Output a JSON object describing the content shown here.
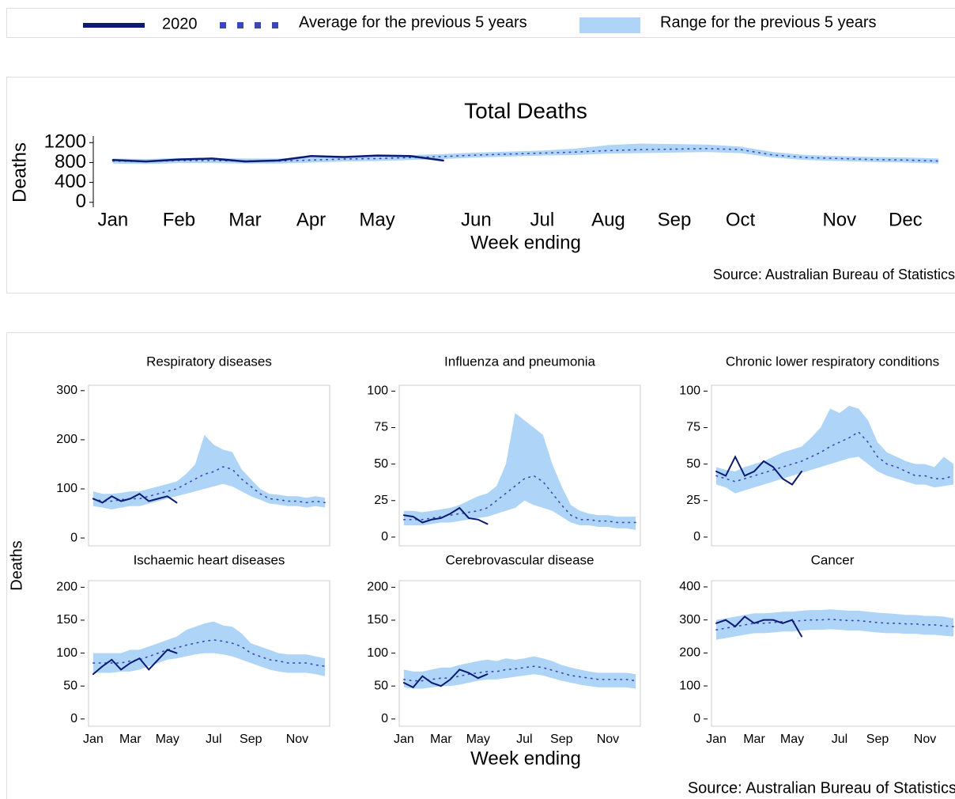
{
  "chart_data": [
    {
      "type": "line",
      "title": "Total Deaths",
      "ylabel": "Deaths",
      "xlabel": "Week ending",
      "source": "Source: Australian Bureau of Statistics",
      "categories": [
        "Jan",
        null,
        "Feb",
        null,
        "Mar",
        null,
        "Apr",
        null,
        "May",
        null,
        null,
        "Jun",
        null,
        "Jul",
        null,
        "Aug",
        null,
        "Sep",
        null,
        "Oct",
        null,
        null,
        "Nov",
        null,
        "Dec",
        null
      ],
      "ylim": [
        -20,
        1300
      ],
      "yticks": [
        0,
        400,
        800,
        1200
      ],
      "series": [
        {
          "name": "Range for the previous 5 years",
          "color": "#aed4f8",
          "low": [
            780,
            770,
            790,
            790,
            780,
            780,
            800,
            820,
            830,
            850,
            870,
            900,
            920,
            940,
            950,
            980,
            990,
            1000,
            1010,
            990,
            900,
            850,
            830,
            810,
            800,
            780
          ],
          "high": [
            880,
            870,
            890,
            890,
            880,
            880,
            900,
            920,
            930,
            950,
            970,
            1000,
            1020,
            1040,
            1080,
            1150,
            1180,
            1170,
            1160,
            1120,
            1010,
            950,
            930,
            910,
            900,
            880
          ]
        },
        {
          "name": "Average for the previous 5 years",
          "color": "#3b46b8",
          "line_style": "dotted",
          "values": [
            830,
            820,
            840,
            840,
            830,
            830,
            850,
            870,
            880,
            900,
            920,
            950,
            970,
            990,
            1010,
            1040,
            1060,
            1070,
            1080,
            1060,
            950,
            900,
            880,
            860,
            850,
            830
          ]
        },
        {
          "name": "2020",
          "color": "#0b1a73",
          "values": [
            850,
            820,
            860,
            880,
            820,
            840,
            930,
            910,
            940,
            930,
            840,
            null,
            null,
            null,
            null,
            null,
            null,
            null,
            null,
            null,
            null,
            null,
            null,
            null,
            null,
            null
          ]
        }
      ]
    },
    {
      "type": "line",
      "title": "Respiratory diseases",
      "categories": [
        "Jan",
        null,
        null,
        null,
        "Mar",
        null,
        null,
        null,
        "May",
        null,
        null,
        null,
        null,
        "Jul",
        null,
        null,
        null,
        "Sep",
        null,
        null,
        null,
        null,
        "Nov",
        null,
        null,
        null
      ],
      "ylim": [
        -16,
        311
      ],
      "yticks": [
        0,
        100,
        200,
        300
      ],
      "series": [
        {
          "color": "#aed4f8",
          "low": [
            65,
            62,
            58,
            62,
            65,
            65,
            70,
            75,
            80,
            85,
            90,
            95,
            100,
            105,
            110,
            105,
            95,
            85,
            78,
            70,
            68,
            65,
            65,
            62,
            65,
            62
          ],
          "high": [
            95,
            90,
            90,
            92,
            95,
            95,
            100,
            105,
            110,
            115,
            130,
            150,
            210,
            190,
            180,
            175,
            140,
            120,
            100,
            90,
            88,
            85,
            85,
            82,
            85,
            82
          ]
        },
        {
          "color": "#3b46b8",
          "line_style": "dotted",
          "values": [
            80,
            75,
            75,
            78,
            80,
            80,
            85,
            90,
            95,
            100,
            110,
            120,
            130,
            135,
            145,
            140,
            120,
            105,
            90,
            80,
            78,
            75,
            75,
            72,
            75,
            72
          ]
        },
        {
          "color": "#0b1a73",
          "values": [
            80,
            72,
            85,
            75,
            80,
            90,
            75,
            80,
            85,
            72,
            null,
            null,
            null,
            null,
            null,
            null,
            null,
            null,
            null,
            null,
            null,
            null,
            null,
            null,
            null,
            null
          ]
        }
      ]
    },
    {
      "type": "line",
      "title": "Influenza and pneumonia",
      "categories": [
        "Jan",
        null,
        null,
        null,
        "Mar",
        null,
        null,
        null,
        "May",
        null,
        null,
        null,
        null,
        "Jul",
        null,
        null,
        null,
        "Sep",
        null,
        null,
        null,
        null,
        "Nov",
        null,
        null,
        null
      ],
      "ylim": [
        -6,
        104
      ],
      "yticks": [
        0,
        25,
        50,
        75,
        100
      ],
      "series": [
        {
          "color": "#aed4f8",
          "low": [
            8,
            8,
            8,
            9,
            10,
            10,
            11,
            12,
            13,
            14,
            16,
            18,
            20,
            25,
            22,
            20,
            18,
            14,
            10,
            8,
            8,
            7,
            7,
            6,
            6,
            5
          ],
          "high": [
            18,
            18,
            17,
            18,
            19,
            20,
            22,
            25,
            28,
            30,
            35,
            50,
            85,
            80,
            75,
            70,
            50,
            35,
            22,
            18,
            16,
            15,
            15,
            14,
            14,
            14
          ]
        },
        {
          "color": "#3b46b8",
          "line_style": "dotted",
          "values": [
            12,
            12,
            12,
            13,
            14,
            15,
            16,
            17,
            18,
            20,
            25,
            30,
            35,
            40,
            42,
            38,
            30,
            22,
            15,
            12,
            12,
            11,
            11,
            10,
            10,
            10
          ]
        },
        {
          "color": "#0b1a73",
          "values": [
            15,
            14,
            10,
            12,
            13,
            16,
            20,
            13,
            12,
            9,
            null,
            null,
            null,
            null,
            null,
            null,
            null,
            null,
            null,
            null,
            null,
            null,
            null,
            null,
            null,
            null
          ]
        }
      ]
    },
    {
      "type": "line",
      "title": "Chronic lower respiratory conditions",
      "categories": [
        "Jan",
        null,
        null,
        null,
        "Mar",
        null,
        null,
        null,
        "May",
        null,
        null,
        null,
        null,
        "Jul",
        null,
        null,
        null,
        "Sep",
        null,
        null,
        null,
        null,
        "Nov",
        null,
        null,
        null
      ],
      "ylim": [
        -6,
        104
      ],
      "yticks": [
        0,
        25,
        50,
        75,
        100
      ],
      "series": [
        {
          "color": "#aed4f8",
          "low": [
            36,
            34,
            30,
            32,
            34,
            36,
            38,
            40,
            42,
            44,
            46,
            48,
            50,
            52,
            54,
            55,
            50,
            45,
            42,
            40,
            38,
            36,
            36,
            34,
            35,
            36
          ],
          "high": [
            48,
            46,
            45,
            48,
            50,
            52,
            55,
            58,
            60,
            62,
            68,
            75,
            88,
            85,
            90,
            88,
            80,
            65,
            58,
            55,
            52,
            50,
            50,
            48,
            55,
            50
          ]
        },
        {
          "color": "#3b46b8",
          "line_style": "dotted",
          "values": [
            42,
            40,
            38,
            40,
            42,
            44,
            46,
            48,
            50,
            52,
            55,
            58,
            62,
            65,
            68,
            72,
            65,
            55,
            50,
            48,
            45,
            42,
            42,
            40,
            40,
            42
          ]
        },
        {
          "color": "#0b1a73",
          "values": [
            45,
            42,
            55,
            42,
            45,
            52,
            48,
            40,
            36,
            45,
            null,
            null,
            null,
            null,
            null,
            null,
            null,
            null,
            null,
            null,
            null,
            null,
            null,
            null,
            null,
            null
          ]
        }
      ]
    },
    {
      "type": "line",
      "title": "Ischaemic heart diseases",
      "categories": [
        "Jan",
        null,
        null,
        null,
        "Mar",
        null,
        null,
        null,
        "May",
        null,
        null,
        null,
        null,
        "Jul",
        null,
        null,
        null,
        "Sep",
        null,
        null,
        null,
        null,
        "Nov",
        null,
        null,
        null
      ],
      "ylim": [
        -11,
        210
      ],
      "yticks": [
        0,
        50,
        100,
        150,
        200
      ],
      "series": [
        {
          "color": "#aed4f8",
          "low": [
            70,
            70,
            70,
            72,
            72,
            75,
            80,
            85,
            90,
            92,
            95,
            98,
            100,
            100,
            98,
            95,
            90,
            85,
            80,
            75,
            72,
            70,
            70,
            70,
            68,
            65
          ],
          "high": [
            100,
            100,
            100,
            100,
            105,
            105,
            110,
            115,
            120,
            125,
            135,
            140,
            145,
            148,
            142,
            140,
            130,
            115,
            110,
            105,
            100,
            98,
            98,
            98,
            95,
            92
          ]
        },
        {
          "color": "#3b46b8",
          "line_style": "dotted",
          "values": [
            85,
            85,
            85,
            85,
            88,
            90,
            95,
            100,
            105,
            108,
            112,
            115,
            118,
            120,
            118,
            115,
            110,
            100,
            95,
            90,
            88,
            85,
            85,
            85,
            82,
            80
          ]
        },
        {
          "color": "#0b1a73",
          "values": [
            68,
            80,
            90,
            75,
            85,
            92,
            75,
            90,
            105,
            100,
            null,
            null,
            null,
            null,
            null,
            null,
            null,
            null,
            null,
            null,
            null,
            null,
            null,
            null,
            null,
            null
          ]
        }
      ]
    },
    {
      "type": "line",
      "title": "Cerebrovascular disease",
      "categories": [
        "Jan",
        null,
        null,
        null,
        "Mar",
        null,
        null,
        null,
        "May",
        null,
        null,
        null,
        null,
        "Jul",
        null,
        null,
        null,
        "Sep",
        null,
        null,
        null,
        null,
        "Nov",
        null,
        null,
        null
      ],
      "ylim": [
        -11,
        210
      ],
      "yticks": [
        0,
        50,
        100,
        150,
        200
      ],
      "series": [
        {
          "color": "#aed4f8",
          "low": [
            48,
            46,
            46,
            48,
            50,
            50,
            52,
            55,
            58,
            60,
            60,
            62,
            64,
            66,
            68,
            66,
            62,
            58,
            55,
            52,
            50,
            48,
            48,
            48,
            48,
            46
          ],
          "high": [
            75,
            72,
            72,
            75,
            78,
            78,
            82,
            85,
            88,
            90,
            88,
            92,
            90,
            92,
            95,
            92,
            88,
            82,
            78,
            75,
            72,
            70,
            70,
            70,
            70,
            68
          ]
        },
        {
          "color": "#3b46b8",
          "line_style": "dotted",
          "values": [
            60,
            58,
            58,
            60,
            62,
            62,
            65,
            68,
            70,
            72,
            72,
            75,
            76,
            78,
            80,
            78,
            74,
            70,
            66,
            64,
            62,
            60,
            60,
            60,
            60,
            58
          ]
        },
        {
          "color": "#0b1a73",
          "values": [
            55,
            48,
            65,
            55,
            50,
            60,
            75,
            70,
            62,
            68,
            null,
            null,
            null,
            null,
            null,
            null,
            null,
            null,
            null,
            null,
            null,
            null,
            null,
            null,
            null,
            null
          ]
        }
      ]
    },
    {
      "type": "line",
      "title": "Cancer",
      "categories": [
        "Jan",
        null,
        null,
        null,
        "Mar",
        null,
        null,
        null,
        "May",
        null,
        null,
        null,
        null,
        "Jul",
        null,
        null,
        null,
        "Sep",
        null,
        null,
        null,
        null,
        "Nov",
        null,
        null,
        null
      ],
      "ylim": [
        -22,
        419
      ],
      "yticks": [
        0,
        100,
        200,
        300,
        400
      ],
      "series": [
        {
          "color": "#aed4f8",
          "low": [
            240,
            245,
            250,
            255,
            260,
            260,
            262,
            265,
            265,
            268,
            270,
            270,
            272,
            270,
            268,
            268,
            265,
            262,
            260,
            260,
            258,
            258,
            255,
            255,
            252,
            250
          ],
          "high": [
            300,
            305,
            310,
            315,
            320,
            320,
            322,
            325,
            325,
            328,
            330,
            330,
            332,
            330,
            328,
            328,
            325,
            322,
            320,
            318,
            315,
            315,
            312,
            312,
            310,
            305
          ]
        },
        {
          "color": "#3b46b8",
          "line_style": "dotted",
          "values": [
            270,
            275,
            280,
            285,
            290,
            290,
            292,
            295,
            295,
            298,
            300,
            300,
            302,
            300,
            298,
            298,
            295,
            292,
            290,
            290,
            288,
            288,
            285,
            285,
            282,
            280
          ]
        },
        {
          "color": "#0b1a73",
          "values": [
            290,
            300,
            280,
            310,
            290,
            300,
            300,
            290,
            300,
            250,
            null,
            null,
            null,
            null,
            null,
            null,
            null,
            null,
            null,
            null,
            null,
            null,
            null,
            null,
            null,
            null
          ]
        }
      ]
    }
  ],
  "panel_group": {
    "ylabel": "Deaths",
    "xlabel": "Week ending",
    "source": "Source: Australian Bureau of Statistics"
  }
}
